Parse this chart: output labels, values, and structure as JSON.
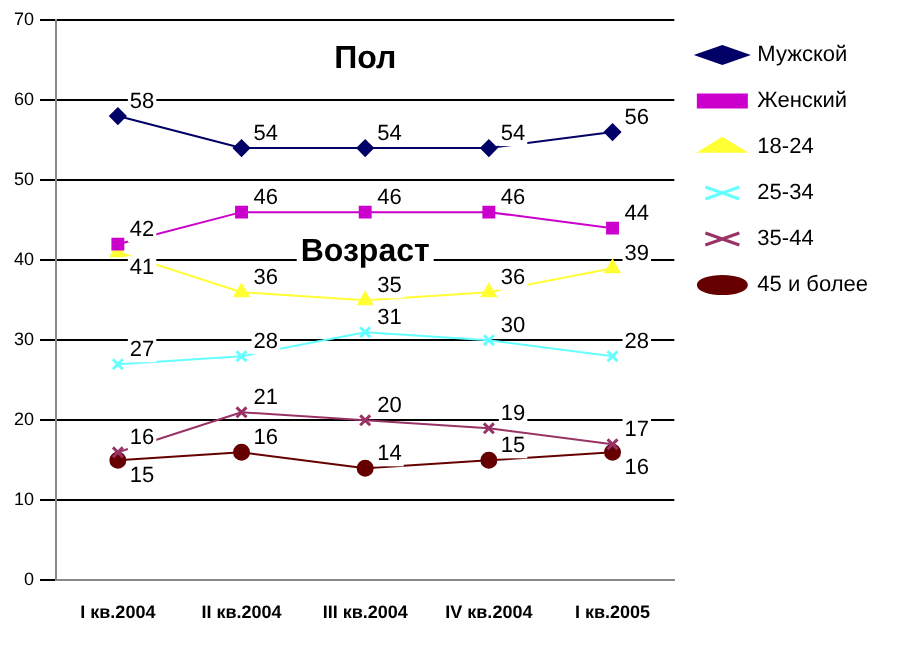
{
  "chart_data": {
    "type": "line",
    "categories": [
      "I кв.2004",
      "II кв.2004",
      "III кв.2004",
      "IV кв.2004",
      "I кв.2005"
    ],
    "series": [
      {
        "name": "Мужской",
        "color": "#000066",
        "marker": "diamond",
        "values": [
          58,
          54,
          54,
          54,
          56
        ]
      },
      {
        "name": "Женский",
        "color": "#cc00cc",
        "marker": "square",
        "values": [
          42,
          46,
          46,
          46,
          44
        ]
      },
      {
        "name": "18-24",
        "color": "#ffff33",
        "marker": "triangle",
        "values": [
          41,
          36,
          35,
          36,
          39
        ]
      },
      {
        "name": "25-34",
        "color": "#66ffff",
        "marker": "cross",
        "values": [
          27,
          28,
          31,
          30,
          28
        ]
      },
      {
        "name": "35-44",
        "color": "#993366",
        "marker": "cross",
        "values": [
          16,
          21,
          20,
          19,
          17
        ]
      },
      {
        "name": "45 и более",
        "color": "#660000",
        "marker": "circle",
        "values": [
          15,
          16,
          14,
          15,
          16
        ]
      }
    ],
    "ylim": [
      0,
      70
    ],
    "yticks": [
      0,
      10,
      20,
      30,
      40,
      50,
      60,
      70
    ],
    "grid": "y",
    "legend": "right",
    "data_labels": true,
    "annotations": [
      "Пол",
      "Возраст"
    ]
  }
}
